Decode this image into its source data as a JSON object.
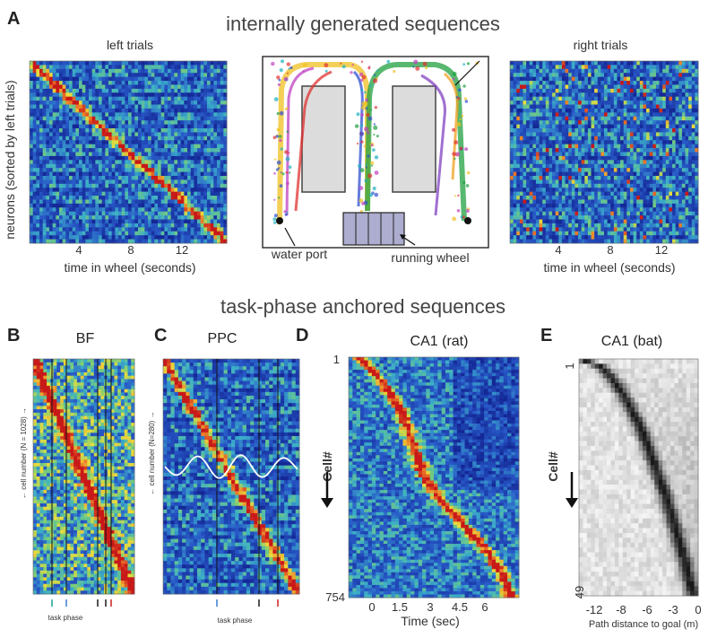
{
  "headings": {
    "top": "internally generated sequences",
    "middle": "task-phase anchored sequences"
  },
  "panel_letters": [
    "A",
    "B",
    "C",
    "D",
    "E"
  ],
  "panelA": {
    "left_title": "left trials",
    "right_title": "right trials",
    "ylabel": "neurons (sorted by left trials)",
    "xlabel": "time in wheel (seconds)",
    "xticks": [
      "4",
      "8",
      "12"
    ],
    "maze_labels": {
      "water_port": "water port",
      "running_wheel": "running wheel"
    }
  },
  "panelB": {
    "title": "BF",
    "ylabel": "← cell number (N = 1028) →",
    "xlabel": "task phase"
  },
  "panelC": {
    "title": "PPC",
    "ylabel": "← cell number (N=280) →",
    "xlabel": "task phase"
  },
  "panelD": {
    "title": "CA1 (rat)",
    "ylabel": "Cell#",
    "ytick_top": "1",
    "ytick_bottom": "754",
    "xlabel": "Time (sec)",
    "xticks": [
      "0",
      "1.5",
      "3",
      "4.5",
      "6"
    ]
  },
  "panelE": {
    "title": "CA1 (bat)",
    "ylabel": "Cell#",
    "ytick_top": "1",
    "ytick_bottom": "49",
    "xlabel": "Path distance to goal (m)",
    "xticks": [
      "-12",
      "-8",
      "-6",
      "-3",
      "0"
    ]
  },
  "colors": {
    "heat_low": "#1e3fa0",
    "heat_mid": "#38b0c8",
    "heat_hot": "#c81e1e",
    "gray_bg": "#f4f4f4",
    "gray_seq": "#1a1a1a"
  },
  "chart_data": [
    {
      "type": "heatmap",
      "panel": "A-left",
      "title": "left trials",
      "xlabel": "time in wheel (seconds)",
      "ylabel": "neurons (sorted by left trials)",
      "xticks": [
        "4",
        "8",
        "12"
      ]
    },
    {
      "type": "heatmap",
      "panel": "A-right",
      "title": "right trials",
      "xlabel": "time in wheel (seconds)",
      "xticks": [
        "4",
        "8",
        "12"
      ]
    },
    {
      "type": "heatmap",
      "panel": "B",
      "title": "BF",
      "ylabel": "← cell number (N = 1028) →",
      "xlabel": "task phase"
    },
    {
      "type": "heatmap",
      "panel": "C",
      "title": "PPC",
      "ylabel": "← cell number (N=280) →",
      "xlabel": "task phase"
    },
    {
      "type": "heatmap",
      "panel": "D",
      "title": "CA1 (rat)",
      "ylabel": "Cell#",
      "xlabel": "Time (sec)",
      "xticks": [
        "0",
        "1.5",
        "3",
        "4.5",
        "6"
      ],
      "yrange": [
        1,
        754
      ]
    },
    {
      "type": "heatmap",
      "panel": "E",
      "title": "CA1 (bat)",
      "ylabel": "Cell#",
      "xlabel": "Path distance to goal (m)",
      "xticks": [
        "-12",
        "-8",
        "-6",
        "-3",
        "0"
      ],
      "yrange": [
        1,
        49
      ]
    }
  ]
}
